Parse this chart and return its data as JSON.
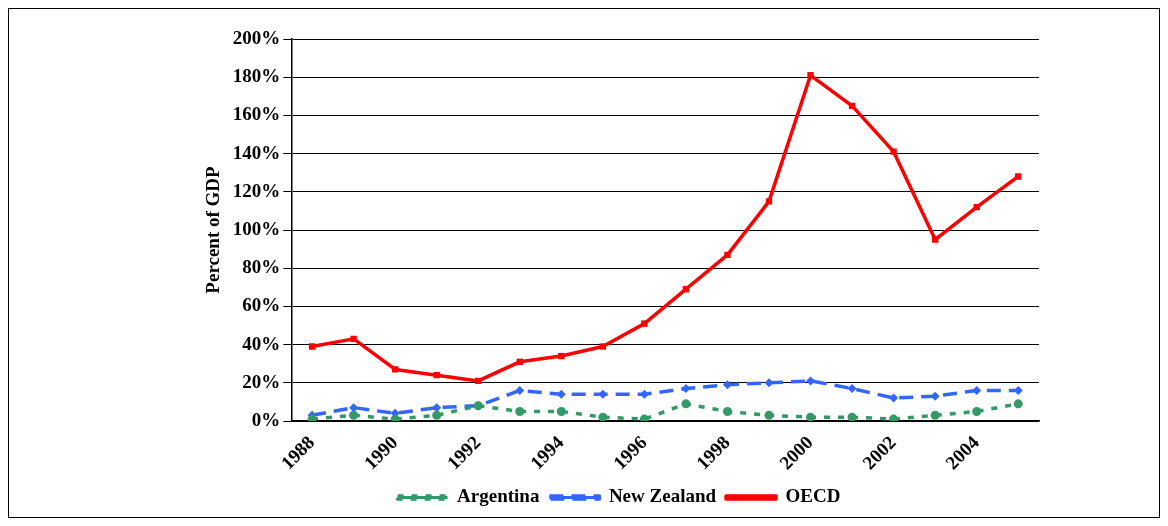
{
  "chart_data": {
    "type": "line",
    "ylabel": "Percent of GDP",
    "categories": [
      "1988",
      null,
      "1990",
      null,
      "1992",
      null,
      "1994",
      null,
      "1996",
      null,
      "1998",
      null,
      "2000",
      null,
      "2002",
      null,
      "2004",
      null
    ],
    "series": [
      {
        "name": "Argentina",
        "color": "#339966",
        "marker": "circle",
        "line_style": "dotted",
        "values": [
          1,
          3,
          1,
          3,
          8,
          5,
          5,
          2,
          1,
          9,
          5,
          3,
          2,
          2,
          1,
          3,
          5,
          9
        ]
      },
      {
        "name": "New Zealand",
        "color": "#3366ff",
        "marker": "diamond",
        "line_style": "dashed",
        "values": [
          3,
          7,
          4,
          7,
          8,
          16,
          14,
          14,
          14,
          17,
          19,
          20,
          21,
          17,
          12,
          13,
          16,
          16
        ]
      },
      {
        "name": "OECD",
        "color": "#ff0000",
        "marker": "square",
        "line_style": "solid",
        "values": [
          39,
          43,
          27,
          24,
          21,
          31,
          34,
          39,
          51,
          69,
          87,
          115,
          181,
          165,
          141,
          95,
          112,
          128
        ]
      }
    ],
    "ylim": [
      0,
      200
    ],
    "yticks": [
      {
        "value": 0,
        "label": "0%"
      },
      {
        "value": 20,
        "label": "20%"
      },
      {
        "value": 40,
        "label": "40%"
      },
      {
        "value": 60,
        "label": "60%"
      },
      {
        "value": 80,
        "label": "80%"
      },
      {
        "value": 100,
        "label": "100%"
      },
      {
        "value": 120,
        "label": "120%"
      },
      {
        "value": 140,
        "label": "140%"
      },
      {
        "value": 160,
        "label": "160%"
      },
      {
        "value": 180,
        "label": "180%"
      },
      {
        "value": 200,
        "label": "200%"
      }
    ],
    "grid": "y",
    "legend": "bottom"
  }
}
